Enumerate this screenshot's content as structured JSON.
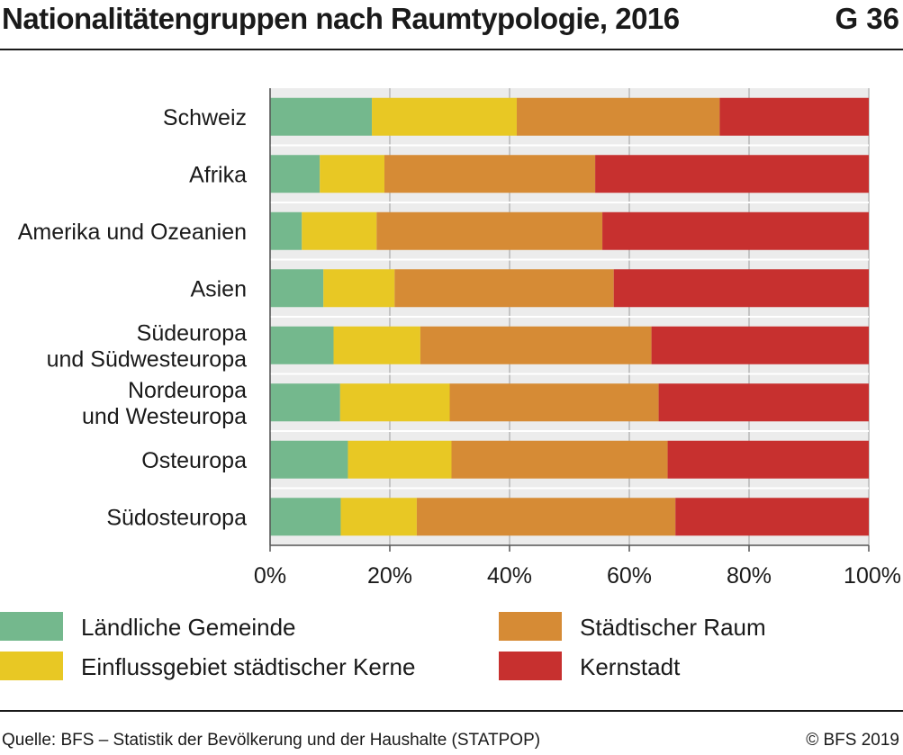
{
  "header": {
    "title": "Nationalitätengruppen nach Raumtypologie, 2016",
    "graphic_number": "G 36"
  },
  "footer": {
    "source": "Quelle: BFS – Statistik der Bevölkerung und der Haushalte (STATPOP)",
    "copyright": "© BFS 2019"
  },
  "chart_data": {
    "type": "bar",
    "orientation": "horizontal",
    "stacked": true,
    "title": "Nationalitätengruppen nach Raumtypologie, 2016",
    "categories": [
      [
        "Schweiz"
      ],
      [
        "Afrika"
      ],
      [
        "Amerika und Ozeanien"
      ],
      [
        "Asien"
      ],
      [
        "Südeuropa",
        "und Südwesteuropa"
      ],
      [
        "Nordeuropa",
        "und Westeuropa"
      ],
      [
        "Osteuropa"
      ],
      [
        "Südosteuropa"
      ]
    ],
    "series": [
      {
        "name": "Ländliche Gemeinde",
        "color": "#74b88d",
        "values": [
          17,
          8.3,
          5.3,
          8.9,
          10.6,
          11.7,
          13,
          11.8
        ]
      },
      {
        "name": "Einflussgebiet städtischer Kerne",
        "color": "#e8c824",
        "values": [
          24.2,
          10.8,
          12.5,
          11.9,
          14.5,
          18.3,
          17.3,
          12.7
        ]
      },
      {
        "name": "Städtischer Raum",
        "color": "#d68b35",
        "values": [
          33.9,
          35.2,
          37.7,
          36.6,
          38.6,
          34.9,
          36.1,
          43.2
        ]
      },
      {
        "name": "Kernstadt",
        "color": "#c7302f",
        "values": [
          24.9,
          45.7,
          44.5,
          42.6,
          36.3,
          35.1,
          33.6,
          32.3
        ]
      }
    ],
    "xticks": [
      "0%",
      "20%",
      "40%",
      "60%",
      "80%",
      "100%"
    ],
    "xlim": [
      0,
      100
    ],
    "grid": true,
    "legend_position": "bottom"
  },
  "legend": {
    "items": [
      {
        "label": "Ländliche Gemeinde",
        "color": "#74b88d"
      },
      {
        "label": "Einflussgebiet städtischer Kerne",
        "color": "#e8c824"
      },
      {
        "label": "Städtischer Raum",
        "color": "#d68b35"
      },
      {
        "label": "Kernstadt",
        "color": "#c7302f"
      }
    ]
  }
}
